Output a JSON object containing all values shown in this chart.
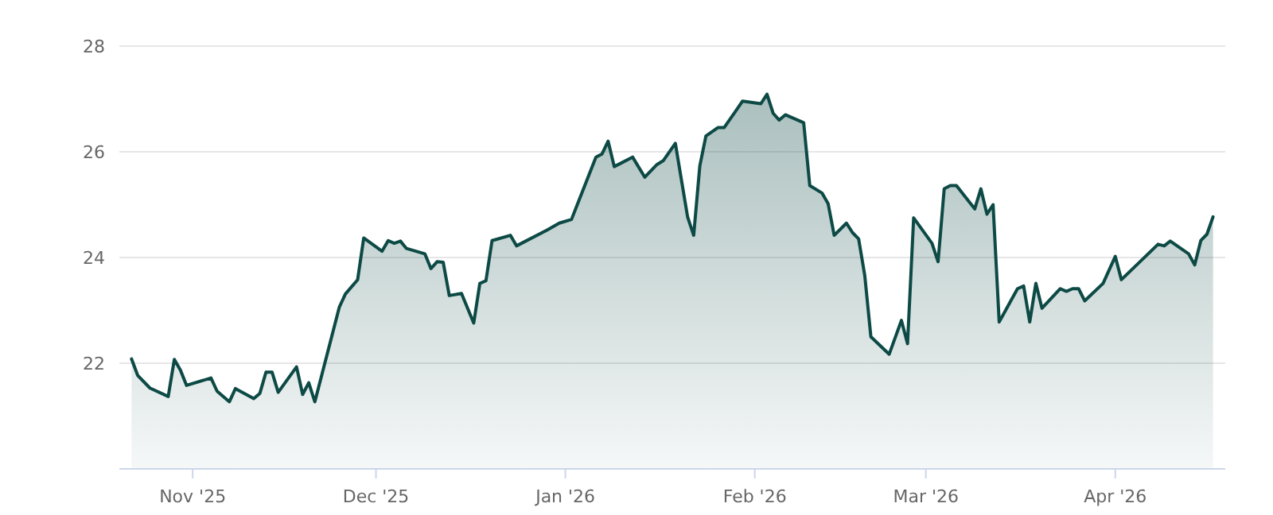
{
  "chart_data": {
    "type": "area",
    "color": "#0d4a45",
    "x": [
      "2025-10-22",
      "2025-10-23",
      "2025-10-25",
      "2025-10-28",
      "2025-10-29",
      "2025-10-30",
      "2025-10-31",
      "2025-11-04",
      "2025-11-05",
      "2025-11-07",
      "2025-11-08",
      "2025-11-11",
      "2025-11-12",
      "2025-11-13",
      "2025-11-14",
      "2025-11-15",
      "2025-11-18",
      "2025-11-19",
      "2025-11-20",
      "2025-11-21",
      "2025-11-25",
      "2025-11-26",
      "2025-11-28",
      "2025-11-29",
      "2025-12-02",
      "2025-12-03",
      "2025-12-04",
      "2025-12-05",
      "2025-12-06",
      "2025-12-09",
      "2025-12-10",
      "2025-12-11",
      "2025-12-12",
      "2025-12-13",
      "2025-12-15",
      "2025-12-17",
      "2025-12-18",
      "2025-12-19",
      "2025-12-20",
      "2025-12-23",
      "2025-12-24",
      "2025-12-29",
      "2025-12-31",
      "2026-01-02",
      "2026-01-06",
      "2026-01-07",
      "2026-01-08",
      "2026-01-09",
      "2026-01-12",
      "2026-01-14",
      "2026-01-16",
      "2026-01-17",
      "2026-01-19",
      "2026-01-21",
      "2026-01-22",
      "2026-01-23",
      "2026-01-24",
      "2026-01-26",
      "2026-01-27",
      "2026-01-29",
      "2026-01-30",
      "2026-02-02",
      "2026-02-03",
      "2026-02-04",
      "2026-02-05",
      "2026-02-06",
      "2026-02-09",
      "2026-02-10",
      "2026-02-12",
      "2026-02-13",
      "2026-02-14",
      "2026-02-16",
      "2026-02-17",
      "2026-02-18",
      "2026-02-19",
      "2026-02-20",
      "2026-02-23",
      "2026-02-25",
      "2026-02-26",
      "2026-02-27",
      "2026-03-02",
      "2026-03-03",
      "2026-03-04",
      "2026-03-05",
      "2026-03-06",
      "2026-03-09",
      "2026-03-10",
      "2026-03-11",
      "2026-03-12",
      "2026-03-13",
      "2026-03-16",
      "2026-03-17",
      "2026-03-18",
      "2026-03-19",
      "2026-03-20",
      "2026-03-23",
      "2026-03-24",
      "2026-03-25",
      "2026-03-26",
      "2026-03-27",
      "2026-03-30",
      "2026-04-01",
      "2026-04-02",
      "2026-04-08",
      "2026-04-09",
      "2026-04-10",
      "2026-04-13",
      "2026-04-14",
      "2026-04-15",
      "2026-04-16",
      "2026-04-17"
    ],
    "values": [
      22.08,
      21.77,
      21.53,
      21.37,
      22.07,
      21.87,
      21.58,
      21.72,
      21.47,
      21.27,
      21.52,
      21.33,
      21.43,
      21.83,
      21.83,
      21.45,
      21.93,
      21.41,
      21.63,
      21.27,
      23.06,
      23.31,
      23.58,
      24.37,
      24.12,
      24.32,
      24.27,
      24.31,
      24.17,
      24.07,
      23.79,
      23.92,
      23.91,
      23.28,
      23.32,
      22.76,
      23.51,
      23.56,
      24.32,
      24.42,
      24.22,
      24.52,
      24.65,
      24.72,
      25.9,
      25.96,
      26.2,
      25.72,
      25.9,
      25.52,
      25.76,
      25.83,
      26.16,
      24.77,
      24.42,
      25.73,
      26.3,
      26.46,
      26.46,
      26.79,
      26.96,
      26.91,
      27.09,
      26.73,
      26.6,
      26.7,
      26.55,
      25.36,
      25.22,
      25.02,
      24.42,
      24.65,
      24.47,
      24.35,
      23.66,
      22.5,
      22.17,
      22.81,
      22.37,
      24.75,
      24.27,
      23.92,
      25.3,
      25.36,
      25.36,
      24.92,
      25.3,
      24.82,
      25.0,
      22.78,
      23.41,
      23.46,
      22.78,
      23.51,
      23.04,
      23.41,
      23.36,
      23.41,
      23.41,
      23.18,
      23.51,
      24.02,
      23.58,
      24.25,
      24.22,
      24.31,
      24.07,
      23.86,
      24.32,
      24.44,
      24.77
    ],
    "xlim": [
      "2025-10-20",
      "2026-04-19"
    ],
    "xticks": [
      {
        "value": "2025-11-01",
        "label": "Nov '25"
      },
      {
        "value": "2025-12-01",
        "label": "Dec '25"
      },
      {
        "value": "2026-01-01",
        "label": "Jan '26"
      },
      {
        "value": "2026-02-01",
        "label": "Feb '26"
      },
      {
        "value": "2026-03-01",
        "label": "Mar '26"
      },
      {
        "value": "2026-04-01",
        "label": "Apr '26"
      }
    ],
    "ylim": [
      20,
      28
    ],
    "yticks": [
      22,
      24,
      26,
      28
    ],
    "grid": "y"
  }
}
